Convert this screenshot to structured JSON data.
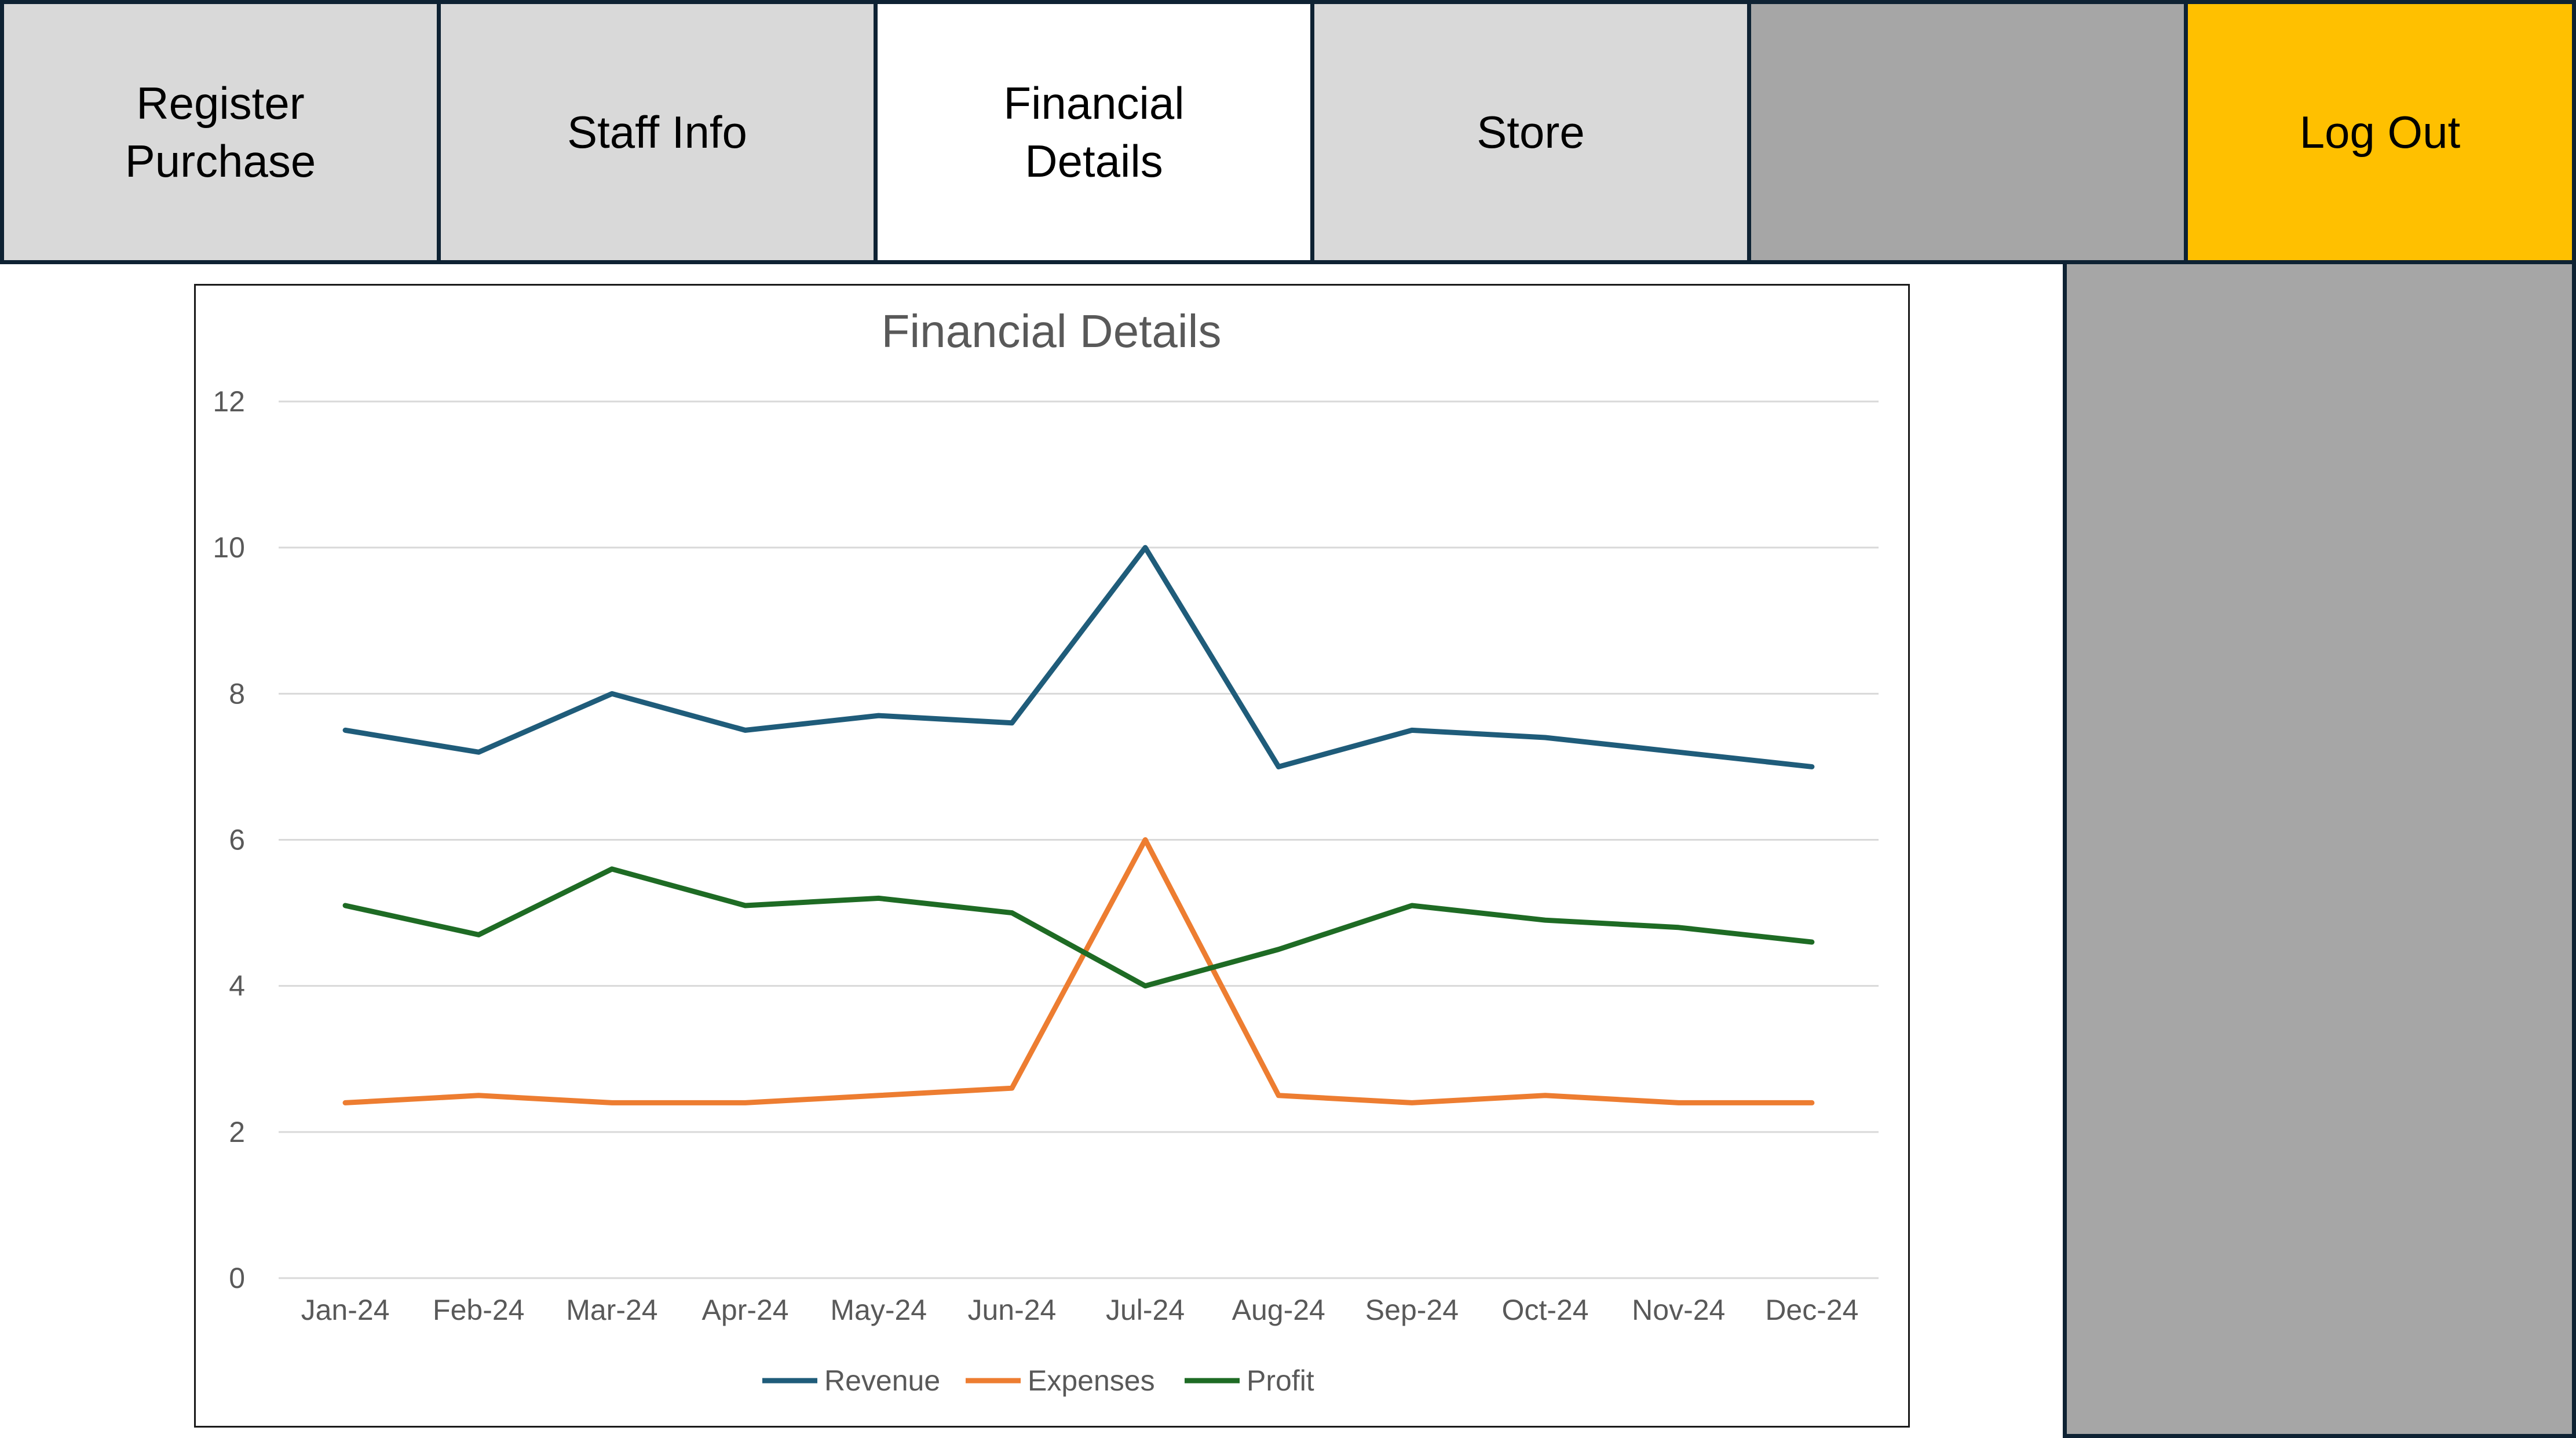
{
  "nav": {
    "tabs": [
      {
        "label": "Register\nPurchase",
        "bg": "#d9d9d9",
        "active": false
      },
      {
        "label": "Staff Info",
        "bg": "#d9d9d9",
        "active": false
      },
      {
        "label": "Financial\nDetails",
        "bg": "#ffffff",
        "active": true
      },
      {
        "label": "Store",
        "bg": "#d9d9d9",
        "active": false
      },
      {
        "label": "",
        "bg": "#a6a6a6",
        "active": false
      },
      {
        "label": "Log Out",
        "bg": "#ffc000",
        "active": false
      }
    ]
  },
  "colors": {
    "border": "#0e2233",
    "panel_gray": "#a6a6a6",
    "tab_gray": "#d9d9d9",
    "logout_yellow": "#ffc000",
    "gridline": "#d9d9d9"
  },
  "chart_data": {
    "type": "line",
    "title": "Financial Details",
    "xlabel": "",
    "ylabel": "",
    "categories": [
      "Jan-24",
      "Feb-24",
      "Mar-24",
      "Apr-24",
      "May-24",
      "Jun-24",
      "Jul-24",
      "Aug-24",
      "Sep-24",
      "Oct-24",
      "Nov-24",
      "Dec-24"
    ],
    "ylim": [
      0,
      12
    ],
    "yticks": [
      0,
      2,
      4,
      6,
      8,
      10,
      12
    ],
    "grid": true,
    "legend": "bottom",
    "series": [
      {
        "name": "Revenue",
        "color": "#1f5c7a",
        "values": [
          7.5,
          7.2,
          8.0,
          7.5,
          7.7,
          7.6,
          10.0,
          7.0,
          7.5,
          7.4,
          7.2,
          7.0
        ]
      },
      {
        "name": "Expenses",
        "color": "#ed7d31",
        "values": [
          2.4,
          2.5,
          2.4,
          2.4,
          2.5,
          2.6,
          6.0,
          2.5,
          2.4,
          2.5,
          2.4,
          2.4
        ]
      },
      {
        "name": "Profit",
        "color": "#1e6b24",
        "values": [
          5.1,
          4.7,
          5.6,
          5.1,
          5.2,
          5.0,
          4.0,
          4.5,
          5.1,
          4.9,
          4.8,
          4.6
        ]
      }
    ]
  }
}
